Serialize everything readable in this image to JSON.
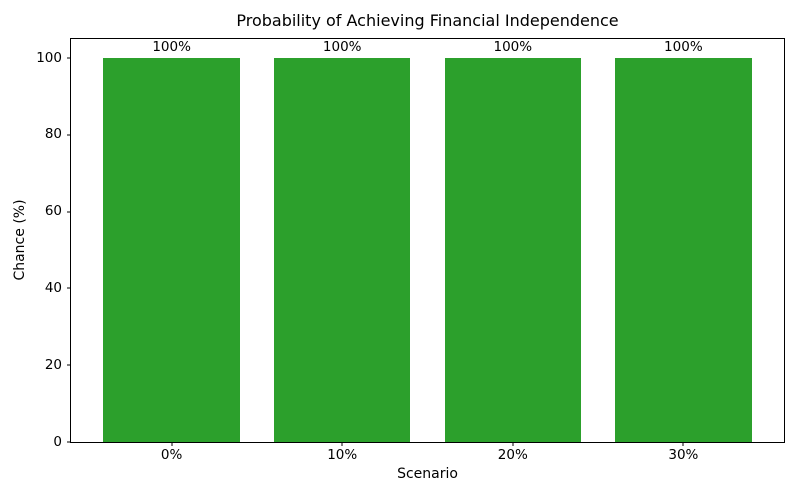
{
  "chart_data": {
    "type": "bar",
    "title": "Probability of Achieving Financial Independence",
    "xlabel": "Scenario",
    "ylabel": "Chance (%)",
    "categories": [
      "0%",
      "10%",
      "20%",
      "30%"
    ],
    "values": [
      100,
      100,
      100,
      100
    ],
    "bar_labels": [
      "100%",
      "100%",
      "100%",
      "100%"
    ],
    "yticks": [
      0,
      20,
      40,
      60,
      80,
      100
    ],
    "ylim": [
      0,
      105
    ],
    "grid": false,
    "legend": "none",
    "bar_color": "#2ca02c",
    "axis_color": "#000000",
    "text_color": "#000000",
    "background_color": "#ffffff",
    "bar_width_fraction": 0.8,
    "x_margin_units": 0.59
  }
}
